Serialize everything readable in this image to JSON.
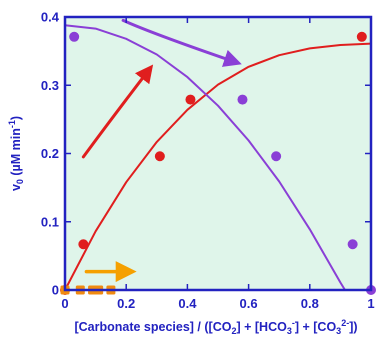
{
  "colors": {
    "background": "#ffffff",
    "plot_background": "#dff5ea",
    "axis": "#2222c0",
    "bicarbonate_series": "#e01e1e",
    "co2_series": "#8a3fd6",
    "carbonate_series": "#f08a10",
    "carbonate_arrow": "#f5a000"
  },
  "chart_data": {
    "type": "scatter",
    "title": "",
    "xlabel": {
      "prefix": "[Carbonate species] / ([CO",
      "sub1": "2",
      "mid1": "] + [HCO",
      "sub2": "3",
      "mid2": "",
      "sup2": "-",
      "mid3": "] + [CO",
      "sub3": "3",
      "sup3": "2-",
      "suffix": "])"
    },
    "ylabel": {
      "prefix": "v",
      "sub": "0",
      "middle": " (µM min",
      "sup": "-1",
      "suffix": ")"
    },
    "xlim": [
      0,
      1
    ],
    "ylim": [
      0,
      0.4
    ],
    "x_ticks": [
      0,
      0.2,
      0.4,
      0.6,
      0.8,
      1
    ],
    "x_tick_labels": [
      "0",
      "0.2",
      "0.4",
      "0.6",
      "0.8",
      "1"
    ],
    "y_ticks": [
      0,
      0.1,
      0.2,
      0.3,
      0.4
    ],
    "y_tick_labels": [
      "0",
      "0.1",
      "0.2",
      "0.3",
      "0.4"
    ],
    "grid": false,
    "series": [
      {
        "key": "bicarbonate",
        "x": [
          0,
          0.06,
          0.31,
          0.41,
          0.97
        ],
        "y": [
          0,
          0.067,
          0.196,
          0.279,
          0.371
        ],
        "fit": [
          [
            0,
            0
          ],
          [
            0.1,
            0.086
          ],
          [
            0.2,
            0.158
          ],
          [
            0.3,
            0.217
          ],
          [
            0.4,
            0.264
          ],
          [
            0.5,
            0.301
          ],
          [
            0.6,
            0.327
          ],
          [
            0.7,
            0.344
          ],
          [
            0.8,
            0.354
          ],
          [
            0.9,
            0.359
          ],
          [
            1.0,
            0.361
          ]
        ]
      },
      {
        "key": "co2",
        "x": [
          0.03,
          0.58,
          0.69,
          0.94,
          1.0
        ],
        "y": [
          0.371,
          0.279,
          0.196,
          0.067,
          0
        ],
        "fit": [
          [
            0,
            0.388
          ],
          [
            0.1,
            0.383
          ],
          [
            0.2,
            0.368
          ],
          [
            0.3,
            0.345
          ],
          [
            0.4,
            0.312
          ],
          [
            0.5,
            0.27
          ],
          [
            0.6,
            0.219
          ],
          [
            0.7,
            0.159
          ],
          [
            0.8,
            0.089
          ],
          [
            0.9,
            0.011
          ],
          [
            0.915,
            0.0
          ],
          [
            1.0,
            0.0
          ]
        ]
      },
      {
        "key": "carbonate",
        "x": [
          0,
          0.05,
          0.09,
          0.11,
          0.15
        ],
        "y": [
          0,
          0,
          0,
          0,
          0
        ]
      }
    ],
    "trend_arrows": [
      {
        "key": "bicarbonate",
        "from": [
          0.06,
          0.195
        ],
        "ctrl": [
          0.15,
          0.25
        ],
        "to": [
          0.27,
          0.32
        ]
      },
      {
        "key": "co2",
        "from": [
          0.19,
          0.395
        ],
        "ctrl": [
          0.29,
          0.375
        ],
        "to": [
          0.55,
          0.335
        ]
      },
      {
        "key": "carbonate",
        "from": [
          0.07,
          0.027
        ],
        "ctrl": [
          0.12,
          0.027
        ],
        "to": [
          0.2,
          0.027
        ]
      }
    ]
  }
}
